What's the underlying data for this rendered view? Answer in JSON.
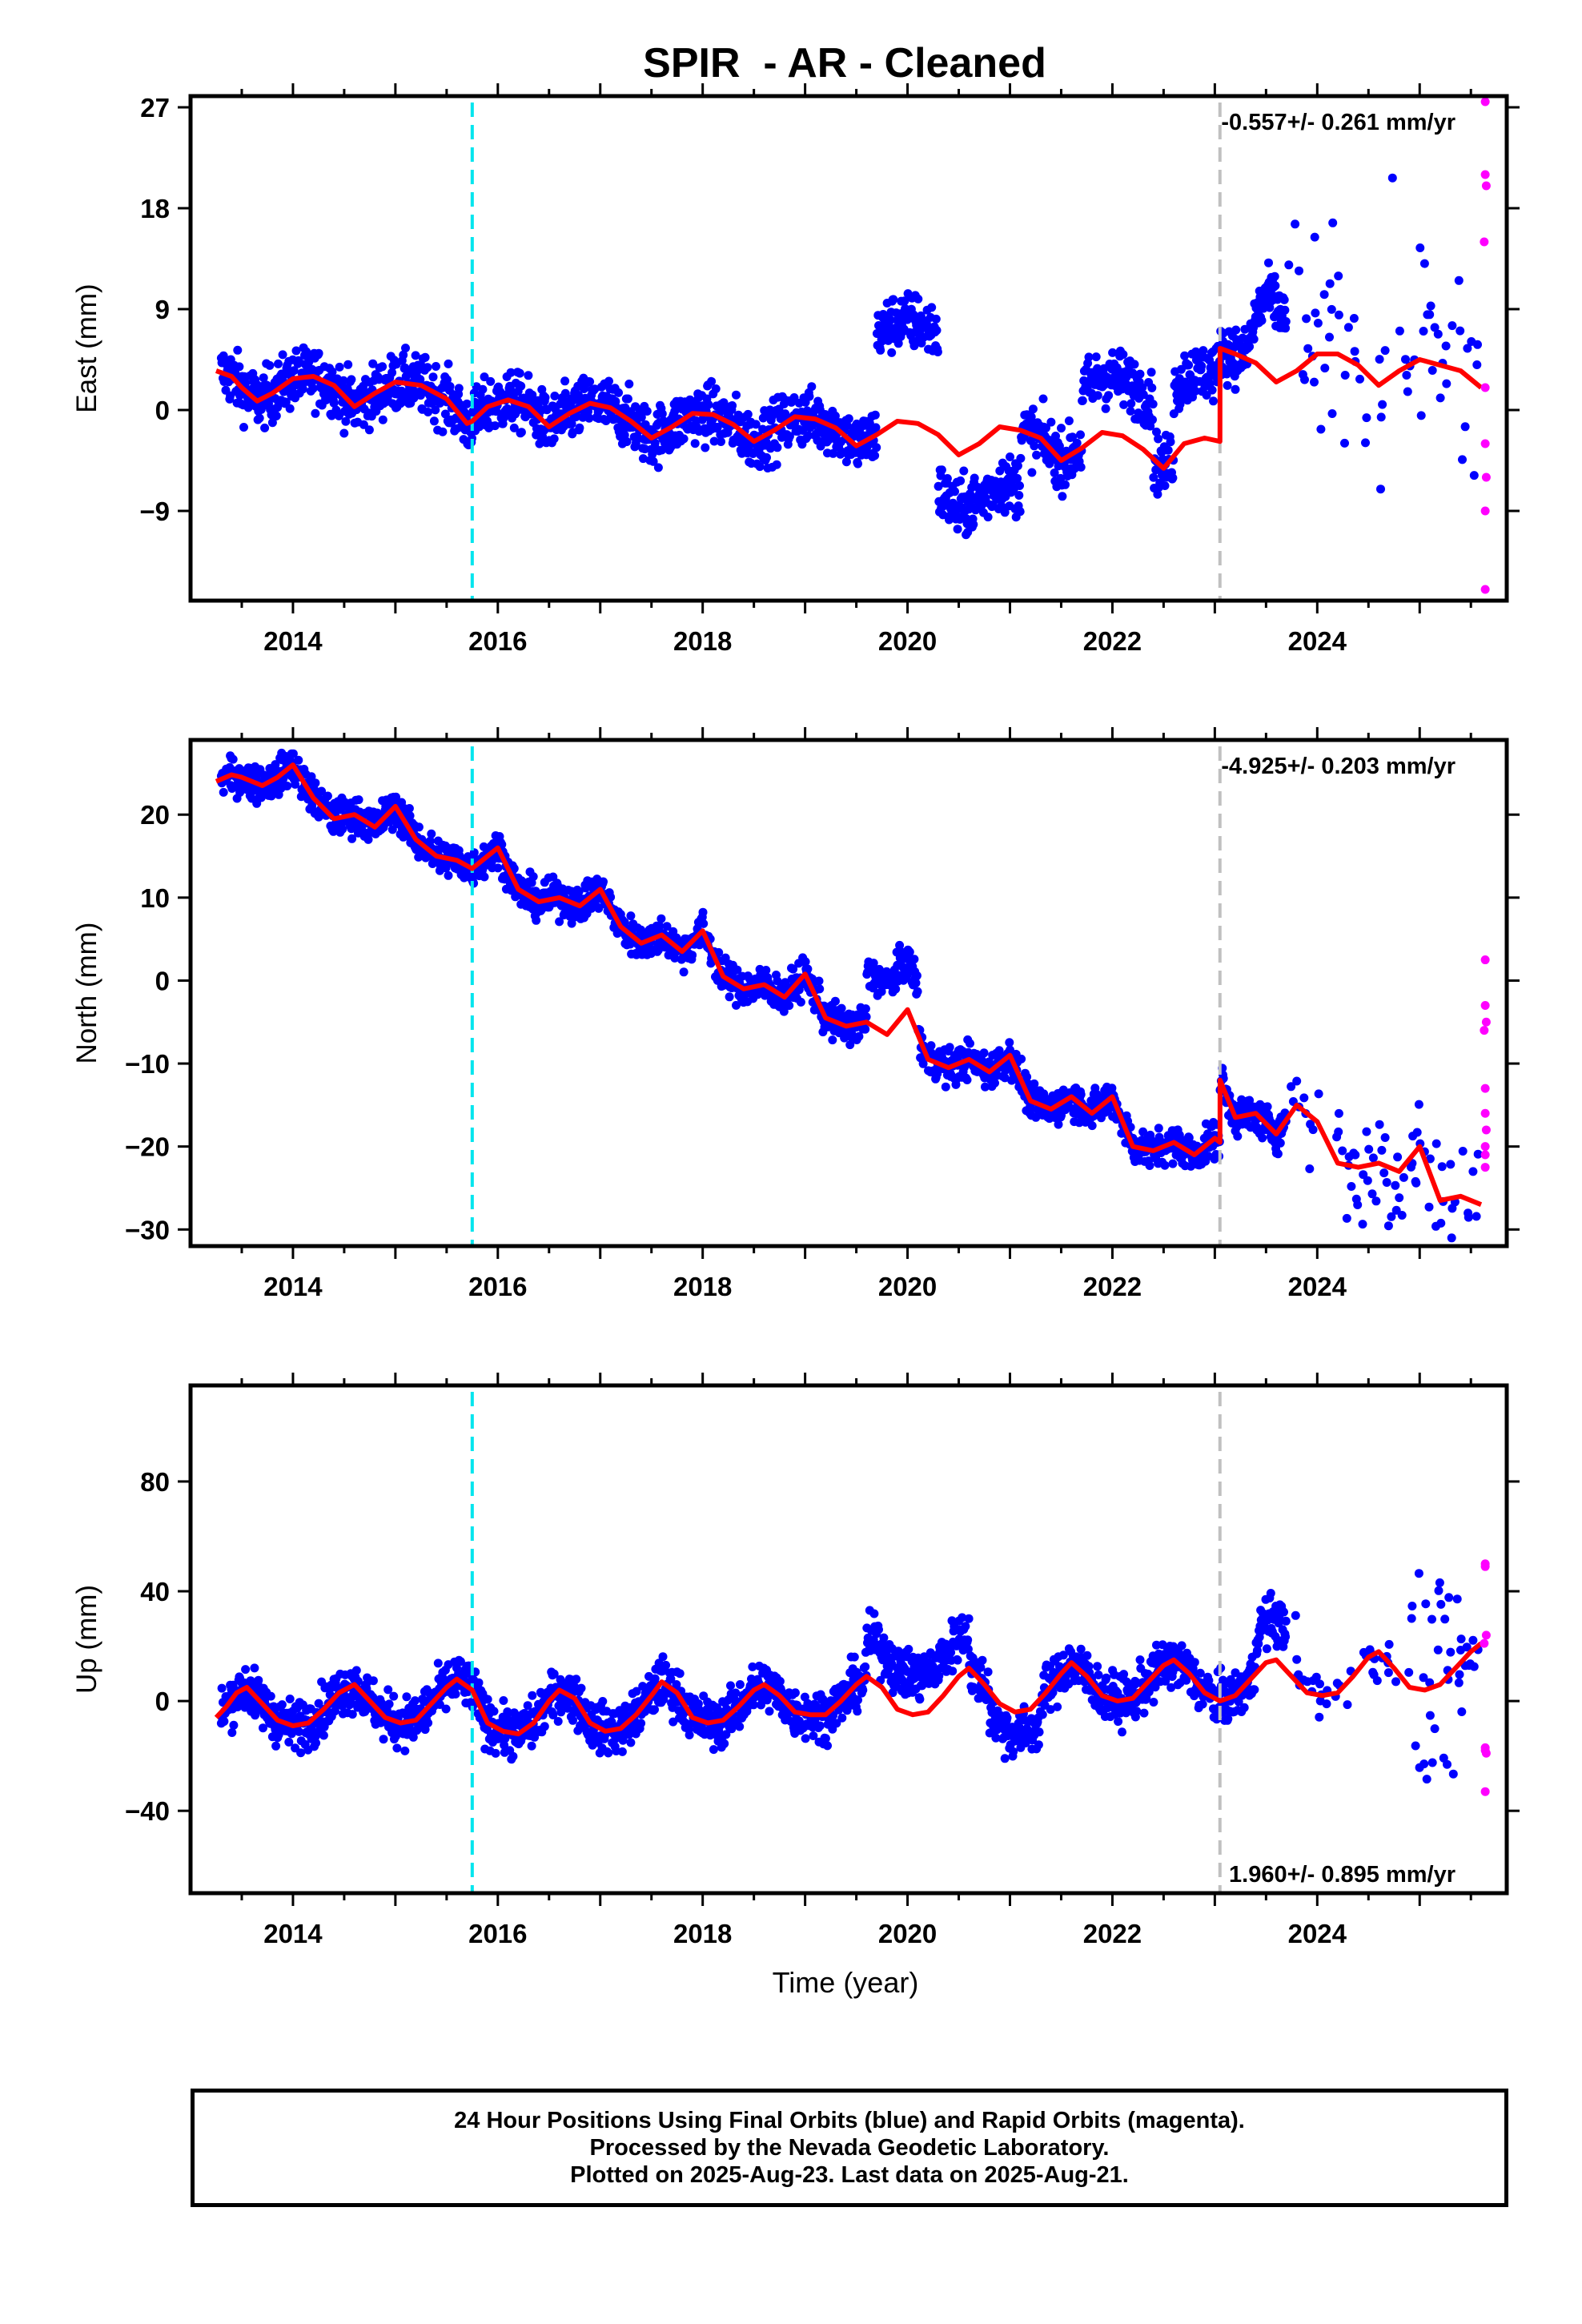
{
  "title": "SPIR  - AR - Cleaned",
  "xlabel": "Time (year)",
  "footer": {
    "line1": "24 Hour Positions Using Final Orbits (blue) and Rapid Orbits (magenta).",
    "line2": "Processed by the Nevada Geodetic Laboratory.",
    "line3": "Plotted on 2025-Aug-23. Last data on 2025-Aug-21."
  },
  "colors": {
    "final_orbits": "#0000ff",
    "rapid_orbits": "#ff00ff",
    "model": "#ff0000",
    "equipment_change": "#00e5ee",
    "other_event": "#c0c0c0"
  },
  "chart_data": [
    {
      "type": "scatter",
      "name": "east",
      "ylabel": "East (mm)",
      "rate_label": "-0.557+/- 0.261 mm/yr",
      "rate_position": "top-right",
      "xlim": [
        2013.0,
        2025.85
      ],
      "ylim": [
        -17,
        28
      ],
      "xticks": [
        2014,
        2016,
        2018,
        2020,
        2022,
        2024
      ],
      "yticks": [
        -9,
        0,
        9,
        18,
        27
      ],
      "grid": false,
      "event_lines": [
        {
          "x": 2015.75,
          "kind": "equipment_change",
          "style": "dashed",
          "color": "#00e5ee"
        },
        {
          "x": 2023.05,
          "kind": "other_event",
          "style": "dashed",
          "color": "#c0c0c0"
        }
      ],
      "model_line": {
        "x": [
          2013.25,
          2013.4,
          2013.5,
          2013.65,
          2013.8,
          2014.0,
          2014.2,
          2014.4,
          2014.6,
          2014.8,
          2015.0,
          2015.25,
          2015.5,
          2015.7,
          2015.75,
          2015.9,
          2016.1,
          2016.3,
          2016.5,
          2016.7,
          2016.9,
          2017.1,
          2017.3,
          2017.5,
          2017.7,
          2017.9,
          2018.1,
          2018.3,
          2018.5,
          2018.7,
          2018.9,
          2019.1,
          2019.3,
          2019.5,
          2019.7,
          2019.9,
          2020.1,
          2020.3,
          2020.5,
          2020.7,
          2020.9,
          2021.1,
          2021.3,
          2021.5,
          2021.7,
          2021.9,
          2022.1,
          2022.3,
          2022.5,
          2022.7,
          2022.9,
          2023.05,
          2023.051,
          2023.2,
          2023.4,
          2023.6,
          2023.8,
          2024.0,
          2024.2,
          2024.4,
          2024.6,
          2024.8,
          2025.0,
          2025.2,
          2025.4,
          2025.6
        ],
        "y": [
          3.5,
          3.0,
          2.0,
          0.8,
          1.5,
          2.8,
          3.0,
          2.2,
          0.3,
          1.5,
          2.5,
          2.2,
          1.0,
          -1.2,
          -1.0,
          0.3,
          0.9,
          0.3,
          -1.5,
          -0.3,
          0.6,
          0.2,
          -1.0,
          -2.5,
          -1.5,
          -0.3,
          -0.4,
          -1.3,
          -2.8,
          -1.8,
          -0.6,
          -0.8,
          -1.6,
          -3.2,
          -2.2,
          -1.0,
          -1.2,
          -2.2,
          -4.0,
          -3.0,
          -1.5,
          -1.8,
          -2.5,
          -4.5,
          -3.4,
          -2.0,
          -2.3,
          -3.5,
          -5.2,
          -3.0,
          -2.5,
          -2.8,
          5.5,
          5.0,
          4.2,
          2.5,
          3.5,
          5.0,
          5.0,
          4.0,
          2.2,
          3.5,
          4.5,
          4.0,
          3.5,
          2.0
        ]
      },
      "rapid_orbits": {
        "x": [
          2025.64,
          2025.64,
          2025.65,
          2025.63,
          2025.64,
          2025.64,
          2025.65,
          2025.64,
          2025.64
        ],
        "y": [
          27.5,
          21,
          20,
          15,
          2,
          -3,
          -6,
          -9,
          -16
        ]
      }
    },
    {
      "type": "scatter",
      "name": "north",
      "ylabel": "North (mm)",
      "rate_label": "-4.925+/- 0.203 mm/yr",
      "rate_position": "top-right",
      "xlim": [
        2013.0,
        2025.85
      ],
      "ylim": [
        -32,
        29
      ],
      "xticks": [
        2014,
        2016,
        2018,
        2020,
        2022,
        2024
      ],
      "yticks": [
        -30,
        -20,
        -10,
        0,
        10,
        20
      ],
      "grid": false,
      "event_lines": [
        {
          "x": 2015.75,
          "kind": "equipment_change",
          "style": "dashed",
          "color": "#00e5ee"
        },
        {
          "x": 2023.05,
          "kind": "other_event",
          "style": "dashed",
          "color": "#c0c0c0"
        }
      ],
      "model_line": {
        "x": [
          2013.25,
          2013.4,
          2013.5,
          2013.7,
          2013.85,
          2014.0,
          2014.2,
          2014.4,
          2014.6,
          2014.8,
          2015.0,
          2015.2,
          2015.4,
          2015.6,
          2015.75,
          2015.9,
          2016.0,
          2016.2,
          2016.4,
          2016.6,
          2016.8,
          2017.0,
          2017.2,
          2017.4,
          2017.6,
          2017.8,
          2018.0,
          2018.2,
          2018.4,
          2018.6,
          2018.8,
          2019.0,
          2019.2,
          2019.4,
          2019.6,
          2019.8,
          2020.0,
          2020.2,
          2020.4,
          2020.6,
          2020.8,
          2021.0,
          2021.2,
          2021.4,
          2021.6,
          2021.8,
          2022.0,
          2022.2,
          2022.4,
          2022.6,
          2022.8,
          2023.0,
          2023.05,
          2023.051,
          2023.2,
          2023.4,
          2023.6,
          2023.8,
          2024.0,
          2024.2,
          2024.4,
          2024.6,
          2024.8,
          2025.0,
          2025.2,
          2025.4,
          2025.6
        ],
        "y": [
          24,
          24.8,
          24.5,
          23.5,
          24.5,
          26,
          22,
          19.5,
          20,
          18.5,
          21,
          17,
          15,
          14.5,
          13.5,
          15,
          16,
          11,
          9.5,
          10,
          9,
          11,
          6.5,
          4.5,
          5.5,
          3.5,
          6,
          0.5,
          -1,
          -0.5,
          -2,
          0.8,
          -4.5,
          -5.5,
          -5,
          -6.5,
          -3.5,
          -9.5,
          -10.5,
          -9.5,
          -11,
          -9,
          -14.5,
          -15.5,
          -14,
          -16,
          -14,
          -20,
          -20.5,
          -19.5,
          -21,
          -19,
          -19.5,
          -12,
          -16.5,
          -16,
          -18.5,
          -15,
          -17,
          -22,
          -22.5,
          -22,
          -23,
          -20,
          -26.5,
          -26,
          -27
        ]
      },
      "rapid_orbits": {
        "x": [
          2025.64,
          2025.64,
          2025.65,
          2025.63,
          2025.64,
          2025.64,
          2025.65,
          2025.64,
          2025.64,
          2025.64
        ],
        "y": [
          2.5,
          -3,
          -5,
          -6,
          -13,
          -16,
          -18,
          -20,
          -21,
          -22.5
        ]
      }
    },
    {
      "type": "scatter",
      "name": "up",
      "ylabel": "Up (mm)",
      "rate_label": "1.960+/- 0.895 mm/yr",
      "rate_position": "bottom-right",
      "xlim": [
        2013.0,
        2025.85
      ],
      "ylim": [
        -70,
        115
      ],
      "xticks": [
        2014,
        2016,
        2018,
        2020,
        2022,
        2024
      ],
      "yticks": [
        -40,
        0,
        40,
        80
      ],
      "grid": false,
      "event_lines": [
        {
          "x": 2015.75,
          "kind": "equipment_change",
          "style": "dashed",
          "color": "#00e5ee"
        },
        {
          "x": 2023.05,
          "kind": "other_event",
          "style": "dashed",
          "color": "#c0c0c0"
        }
      ],
      "model_line": {
        "x": [
          2013.25,
          2013.35,
          2013.45,
          2013.55,
          2013.7,
          2013.85,
          2014.0,
          2014.15,
          2014.3,
          2014.45,
          2014.6,
          2014.75,
          2014.9,
          2015.05,
          2015.2,
          2015.35,
          2015.5,
          2015.6,
          2015.75,
          2015.9,
          2016.05,
          2016.2,
          2016.35,
          2016.5,
          2016.6,
          2016.75,
          2016.9,
          2017.05,
          2017.2,
          2017.35,
          2017.5,
          2017.6,
          2017.75,
          2017.9,
          2018.05,
          2018.2,
          2018.35,
          2018.5,
          2018.6,
          2018.75,
          2018.9,
          2019.05,
          2019.2,
          2019.35,
          2019.5,
          2019.6,
          2019.75,
          2019.9,
          2020.05,
          2020.2,
          2020.35,
          2020.5,
          2020.6,
          2020.75,
          2020.9,
          2021.05,
          2021.2,
          2021.35,
          2021.5,
          2021.6,
          2021.75,
          2021.9,
          2022.05,
          2022.2,
          2022.35,
          2022.5,
          2022.6,
          2022.75,
          2022.9,
          2023.05,
          2023.2,
          2023.35,
          2023.5,
          2023.6,
          2023.75,
          2023.9,
          2024.05,
          2024.2,
          2024.35,
          2024.5,
          2024.6,
          2024.75,
          2024.9,
          2025.05,
          2025.2,
          2025.35,
          2025.5,
          2025.6
        ],
        "y": [
          -6,
          -2,
          3,
          5,
          -1,
          -7,
          -9,
          -8,
          -3,
          3,
          6,
          0,
          -6,
          -8,
          -7,
          -1,
          5,
          8,
          4,
          -8,
          -11,
          -12,
          -8,
          0,
          4,
          1,
          -8,
          -11,
          -10,
          -5,
          2,
          7,
          3,
          -6,
          -8,
          -7,
          -2,
          4,
          6,
          2,
          -4,
          -5,
          -5,
          0,
          6,
          9,
          5,
          -3,
          -5,
          -4,
          2,
          9,
          12,
          6,
          -1,
          -4,
          -3,
          3,
          10,
          14,
          9,
          2,
          0,
          1,
          7,
          13,
          15,
          10,
          3,
          0,
          2,
          8,
          14,
          15,
          9,
          3,
          2,
          3,
          9,
          16,
          18,
          12,
          5,
          4,
          6,
          12,
          18,
          21
        ]
      },
      "rapid_orbits": {
        "x": [
          2025.64,
          2025.64,
          2025.65,
          2025.63,
          2025.64,
          2025.64,
          2025.65,
          2025.64
        ],
        "y": [
          50,
          49,
          24,
          21,
          -17,
          -18,
          -19,
          -33
        ]
      }
    }
  ]
}
